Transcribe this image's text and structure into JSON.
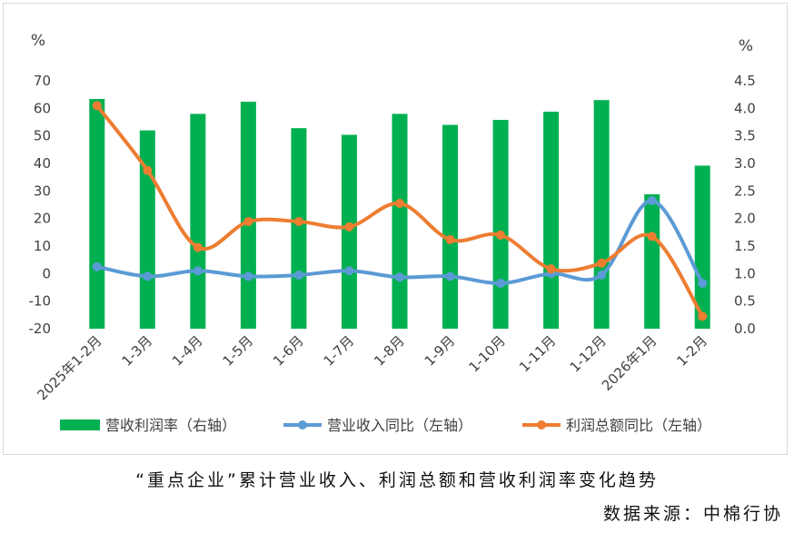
{
  "caption": "“重点企业”累计营业收入、利润总额和营收利润率变化趋势",
  "source": "数据来源：中棉行协",
  "chart_data": {
    "type": "bar+line",
    "categories": [
      "2025年1-2月",
      "1-3月",
      "1-4月",
      "1-5月",
      "1-6月",
      "1-7月",
      "1-8月",
      "1-9月",
      "1-10月",
      "1-11月",
      "1-12月",
      "2026年1月",
      "1-2月"
    ],
    "left_axis": {
      "unit": "%",
      "min": -20,
      "max": 70,
      "ticks": [
        -20,
        -10,
        0,
        10,
        20,
        30,
        40,
        50,
        60,
        70
      ]
    },
    "right_axis": {
      "unit": "%",
      "min": 0.0,
      "max": 4.5,
      "ticks": [
        "0.0",
        "0.5",
        "1.0",
        "1.5",
        "2.0",
        "2.5",
        "3.0",
        "3.5",
        "4.0",
        "4.5"
      ]
    },
    "series": [
      {
        "name": "营收利润率（右轴）",
        "type": "bar",
        "axis": "right",
        "color": "#00b050",
        "values": [
          4.17,
          3.6,
          3.9,
          4.12,
          3.64,
          3.52,
          3.9,
          3.7,
          3.79,
          3.94,
          4.15,
          2.44,
          2.96
        ]
      },
      {
        "name": "营业收入同比（左轴）",
        "type": "line",
        "axis": "left",
        "color": "#5b9bd5",
        "values": [
          2.5,
          -1.0,
          1.0,
          -1.0,
          -0.5,
          1.0,
          -1.3,
          -1.0,
          -3.5,
          0.0,
          -0.5,
          26.5,
          -3.5
        ]
      },
      {
        "name": "利润总额同比（左轴）",
        "type": "line",
        "axis": "left",
        "color": "#ed7d31",
        "values": [
          61.0,
          37.5,
          9.5,
          18.9,
          18.9,
          17.0,
          25.5,
          12.3,
          14.0,
          1.7,
          3.8,
          13.5,
          -15.5
        ]
      }
    ]
  }
}
